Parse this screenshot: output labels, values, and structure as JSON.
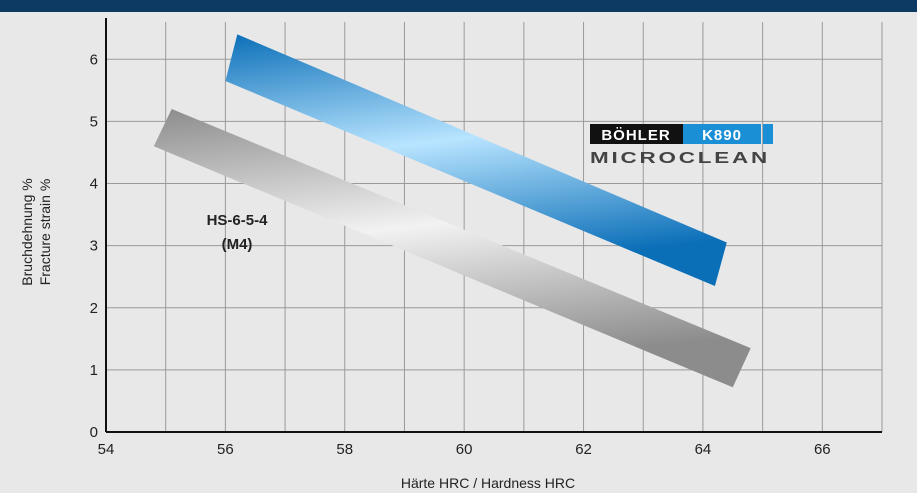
{
  "chart_data": {
    "type": "area",
    "xlabel": "Härte HRC / Hardness HRC",
    "ylabel_lines": [
      "Bruchdehnung %",
      "Fracture strain %"
    ],
    "xlim": [
      54,
      67
    ],
    "ylim": [
      0,
      6.6
    ],
    "x_ticks": [
      54,
      56,
      58,
      60,
      62,
      64,
      66
    ],
    "y_ticks": [
      0,
      1,
      2,
      3,
      4,
      5,
      6
    ],
    "grid": true,
    "series": [
      {
        "name": "BÖHLER K890 MICROCLEAN",
        "brand": "BÖHLER",
        "grade": "K890",
        "sub": "MICROCLEAN",
        "color": "#1a8fd6",
        "upper": [
          {
            "x": 56.2,
            "y": 6.4
          },
          {
            "x": 64.4,
            "y": 3.05
          }
        ],
        "lower": [
          {
            "x": 56.0,
            "y": 5.65
          },
          {
            "x": 64.2,
            "y": 2.35
          }
        ]
      },
      {
        "name": "HS-6-5-4 (M4)",
        "label_lines": [
          "HS-6-5-4",
          "(M4)"
        ],
        "color": "#a8a8a8",
        "upper": [
          {
            "x": 55.1,
            "y": 5.2
          },
          {
            "x": 64.8,
            "y": 1.35
          }
        ],
        "lower": [
          {
            "x": 54.8,
            "y": 4.6
          },
          {
            "x": 64.5,
            "y": 0.72
          }
        ]
      }
    ]
  }
}
